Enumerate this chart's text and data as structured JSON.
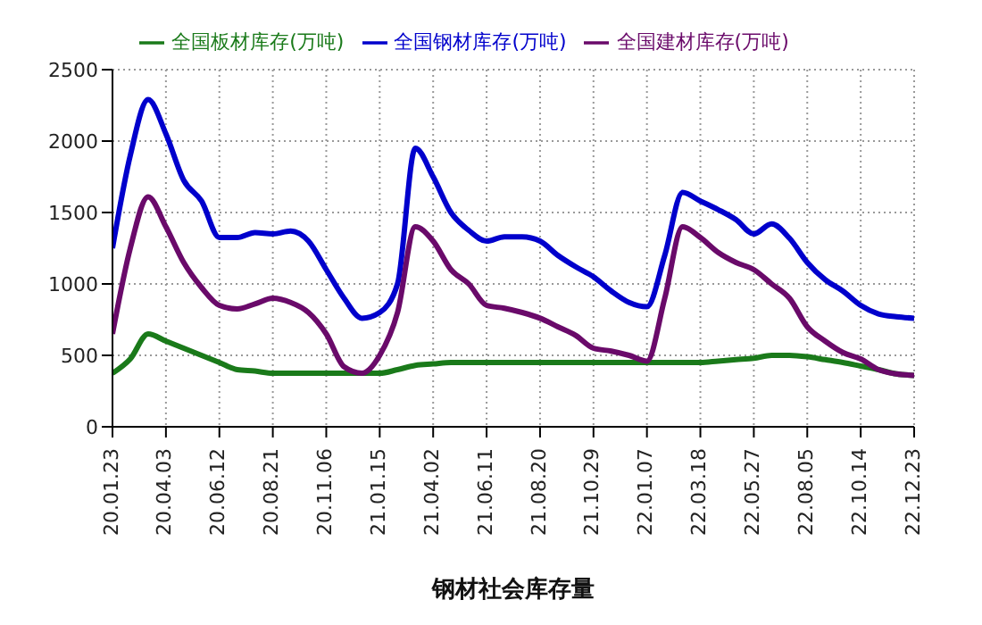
{
  "chart_data": {
    "type": "line",
    "xlabel": "钢材社会库存量",
    "categories": [
      "20.01.23",
      null,
      null,
      "20.04.03",
      null,
      null,
      "20.06.12",
      null,
      null,
      "20.08.21",
      null,
      null,
      "20.11.06",
      null,
      null,
      "21.01.15",
      null,
      null,
      "21.04.02",
      null,
      null,
      "21.06.11",
      null,
      null,
      "21.08.20",
      null,
      null,
      "21.10.29",
      null,
      null,
      "22.01.07",
      null,
      null,
      "22.03.18",
      null,
      null,
      "22.05.27",
      null,
      null,
      "22.08.05",
      null,
      null,
      "22.10.14",
      null,
      null,
      "22.12.23"
    ],
    "series": [
      {
        "name": "全国板材库存(万吨)",
        "color": "#1a7a1a",
        "values": [
          375,
          475,
          650,
          600,
          550,
          500,
          450,
          400,
          390,
          375,
          375,
          375,
          375,
          375,
          375,
          375,
          400,
          430,
          440,
          450,
          450,
          450,
          450,
          450,
          450,
          450,
          450,
          450,
          450,
          450,
          450,
          450,
          450,
          450,
          460,
          470,
          480,
          500,
          500,
          490,
          470,
          450,
          425,
          400,
          370,
          360
        ]
      },
      {
        "name": "全国钢材库存(万吨)",
        "color": "#0000cc",
        "values": [
          1250,
          1900,
          2290,
          2050,
          1725,
          1580,
          1325,
          1325,
          1360,
          1350,
          1370,
          1300,
          1100,
          900,
          760,
          800,
          1000,
          1950,
          1750,
          1500,
          1375,
          1300,
          1330,
          1330,
          1300,
          1200,
          1120,
          1050,
          950,
          870,
          840,
          1200,
          1640,
          1580,
          1520,
          1450,
          1350,
          1420,
          1320,
          1150,
          1030,
          950,
          850,
          790,
          770,
          760
        ]
      },
      {
        "name": "全国建材库存(万吨)",
        "color": "#6a0a6a",
        "values": [
          650,
          1250,
          1610,
          1400,
          1150,
          975,
          850,
          825,
          860,
          900,
          870,
          800,
          650,
          420,
          375,
          500,
          800,
          1400,
          1300,
          1100,
          1000,
          850,
          830,
          800,
          760,
          700,
          640,
          550,
          530,
          500,
          460,
          900,
          1400,
          1325,
          1220,
          1150,
          1100,
          1000,
          900,
          700,
          600,
          520,
          475,
          400,
          370,
          360
        ]
      }
    ],
    "ylim": [
      0,
      2500
    ],
    "yticks": [
      0,
      500,
      1000,
      1500,
      2000,
      2500
    ],
    "grid": true,
    "legend": "top",
    "marker": "none",
    "line_style": "solid"
  }
}
